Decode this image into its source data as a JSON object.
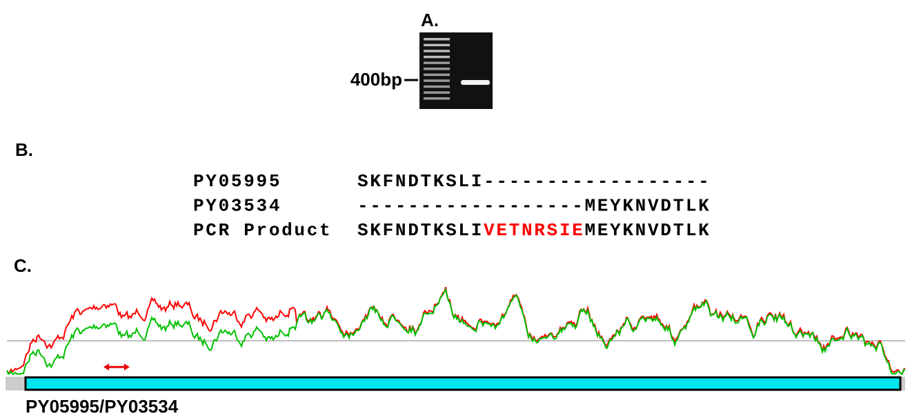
{
  "panels": [
    {
      "label": "A.",
      "marker": "400bp"
    },
    {
      "label": "B.",
      "alignment": {
        "rows": [
          {
            "name": "PY05995",
            "segments": [
              {
                "text": "SKFNDTKSLI",
                "color": "#000000"
              },
              {
                "text": "------------------",
                "color": "#000000"
              }
            ]
          },
          {
            "name": "PY03534",
            "segments": [
              {
                "text": "------------------",
                "color": "#000000"
              },
              {
                "text": "MEYKNVDTLK",
                "color": "#000000"
              }
            ]
          },
          {
            "name": "PCR Product",
            "segments": [
              {
                "text": "SKFNDTKSLI",
                "color": "#000000"
              },
              {
                "text": "VETNRSIE",
                "color": "#ff0000"
              },
              {
                "text": "MEYKNVDTLK",
                "color": "#000000"
              }
            ]
          }
        ]
      }
    },
    {
      "label": "C.",
      "caption": "PY05995/PY03534"
    }
  ]
}
